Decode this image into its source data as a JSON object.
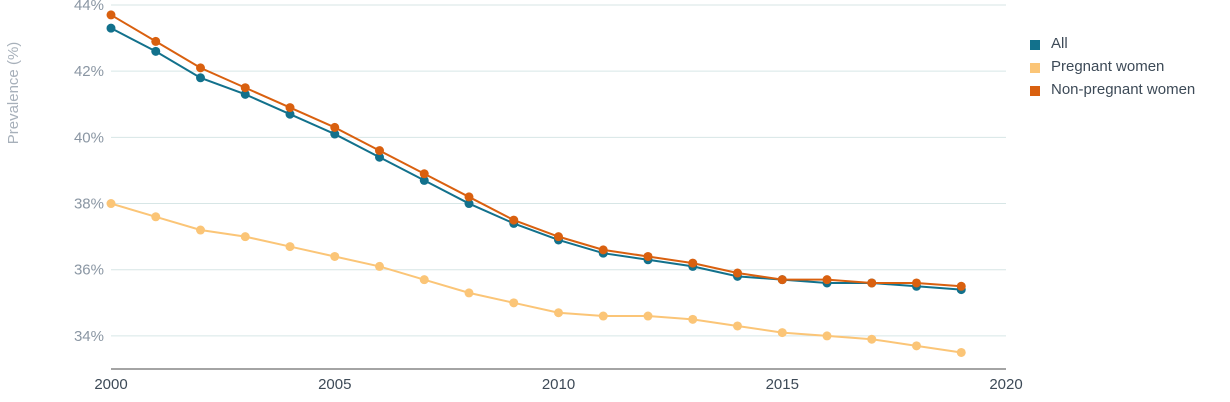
{
  "chart_data": {
    "type": "line",
    "ylabel": "Prevalence (%)",
    "xlabel": "",
    "title": "",
    "x": [
      2000,
      2001,
      2002,
      2003,
      2004,
      2005,
      2006,
      2007,
      2008,
      2009,
      2010,
      2011,
      2012,
      2013,
      2014,
      2015,
      2016,
      2017,
      2018,
      2019
    ],
    "xlim": [
      2000,
      2020
    ],
    "xticks": [
      2000,
      2005,
      2010,
      2015,
      2020
    ],
    "xtick_labels": [
      "2000",
      "2005",
      "2010",
      "2015",
      "2020"
    ],
    "ylim": [
      33,
      44
    ],
    "yticks": [
      34,
      36,
      38,
      40,
      42,
      44
    ],
    "ytick_labels": [
      "34%",
      "36%",
      "38%",
      "40%",
      "42%",
      "44%"
    ],
    "grid": true,
    "legend_position": "right",
    "series": [
      {
        "name": "Pregnant women",
        "color": "#fbc577",
        "values": [
          38.0,
          37.6,
          37.2,
          37.0,
          36.7,
          36.4,
          36.1,
          35.7,
          35.3,
          35.0,
          34.7,
          34.6,
          34.6,
          34.5,
          34.3,
          34.1,
          34.0,
          33.9,
          33.7,
          33.5
        ]
      },
      {
        "name": "All",
        "color": "#12718c",
        "values": [
          43.3,
          42.6,
          41.8,
          41.3,
          40.7,
          40.1,
          39.4,
          38.7,
          38.0,
          37.4,
          36.9,
          36.5,
          36.3,
          36.1,
          35.8,
          35.7,
          35.6,
          35.6,
          35.5,
          35.4
        ]
      },
      {
        "name": "Non-pregnant women",
        "color": "#d9600f",
        "values": [
          43.7,
          42.9,
          42.1,
          41.5,
          40.9,
          40.3,
          39.6,
          38.9,
          38.2,
          37.5,
          37.0,
          36.6,
          36.4,
          36.2,
          35.9,
          35.7,
          35.7,
          35.6,
          35.6,
          35.5
        ]
      }
    ],
    "legend": [
      {
        "name": "All",
        "color": "#12718c"
      },
      {
        "name": "Pregnant women",
        "color": "#fbc577"
      },
      {
        "name": "Non-pregnant women",
        "color": "#d9600f"
      }
    ]
  }
}
